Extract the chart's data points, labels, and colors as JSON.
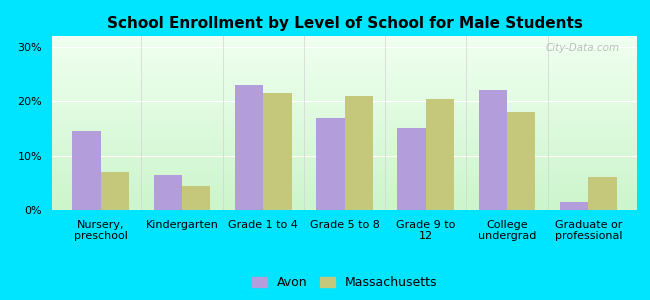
{
  "title": "School Enrollment by Level of School for Male Students",
  "categories": [
    "Nursery,\npreschool",
    "Kindergarten",
    "Grade 1 to 4",
    "Grade 5 to 8",
    "Grade 9 to\n12",
    "College\nundergrad",
    "Graduate or\nprofessional"
  ],
  "avon_values": [
    14.5,
    6.5,
    23.0,
    17.0,
    15.0,
    22.0,
    1.5
  ],
  "mass_values": [
    7.0,
    4.5,
    21.5,
    21.0,
    20.5,
    18.0,
    6.0
  ],
  "avon_color": "#b39ddb",
  "mass_color": "#c5c87a",
  "background_outer": "#00e5ff",
  "background_inner_top": "#f0fff0",
  "background_inner_bottom": "#ccf5cc",
  "yticks": [
    0,
    10,
    20,
    30
  ],
  "ylim": [
    0,
    32
  ],
  "legend_labels": [
    "Avon",
    "Massachusetts"
  ],
  "title_fontsize": 11,
  "tick_fontsize": 8,
  "legend_fontsize": 9,
  "watermark": "City-Data.com"
}
